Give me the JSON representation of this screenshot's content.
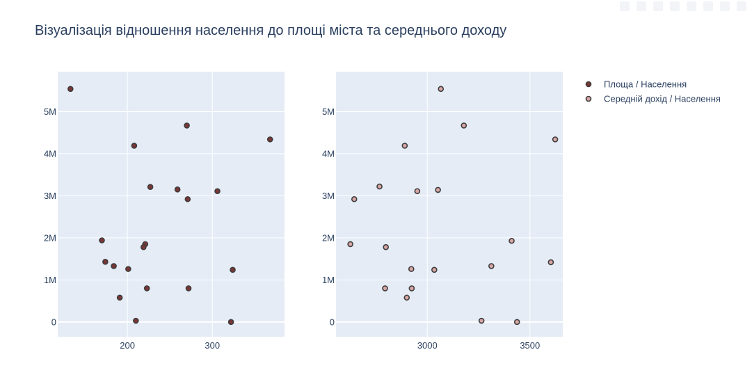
{
  "chart_data": {
    "type": "scatter",
    "title": "Візуалізація відношення населення до площі міста та середнього доходу",
    "subplots": [
      {
        "xlim": [
          118,
          385
        ],
        "ylim": [
          -350000,
          5950000
        ],
        "xticks": [
          200,
          300
        ],
        "yticks": [
          0,
          1000000,
          2000000,
          3000000,
          4000000,
          5000000
        ],
        "ytick_labels": [
          "0",
          "1M",
          "2M",
          "3M",
          "4M",
          "5M"
        ],
        "series": [
          {
            "name": "Площа / Населення",
            "color": "#7b3535",
            "points": [
              {
                "x": 133,
                "y": 5540000
              },
              {
                "x": 270,
                "y": 4670000
              },
              {
                "x": 368,
                "y": 4340000
              },
              {
                "x": 208,
                "y": 4190000
              },
              {
                "x": 227,
                "y": 3210000
              },
              {
                "x": 259,
                "y": 3150000
              },
              {
                "x": 306,
                "y": 3110000
              },
              {
                "x": 271,
                "y": 2920000
              },
              {
                "x": 170,
                "y": 1940000
              },
              {
                "x": 221,
                "y": 1850000
              },
              {
                "x": 219,
                "y": 1780000
              },
              {
                "x": 174,
                "y": 1430000
              },
              {
                "x": 184,
                "y": 1330000
              },
              {
                "x": 201,
                "y": 1260000
              },
              {
                "x": 324,
                "y": 1240000
              },
              {
                "x": 223,
                "y": 800000
              },
              {
                "x": 272,
                "y": 800000
              },
              {
                "x": 191,
                "y": 580000
              },
              {
                "x": 210,
                "y": 30000
              },
              {
                "x": 322,
                "y": 0
              }
            ]
          }
        ]
      },
      {
        "xlim": [
          2555,
          3660
        ],
        "ylim": [
          -350000,
          5950000
        ],
        "xticks": [
          3000,
          3500
        ],
        "yticks": [
          0,
          1000000,
          2000000,
          3000000,
          4000000,
          5000000
        ],
        "ytick_labels": [
          "0",
          "1M",
          "2M",
          "3M",
          "4M",
          "5M"
        ],
        "series": [
          {
            "name": "Середній дохід / Населення",
            "color": "#d9a6a6",
            "points": [
              {
                "x": 3066,
                "y": 5540000
              },
              {
                "x": 3178,
                "y": 4670000
              },
              {
                "x": 3623,
                "y": 4340000
              },
              {
                "x": 2890,
                "y": 4190000
              },
              {
                "x": 2767,
                "y": 3220000
              },
              {
                "x": 2951,
                "y": 3110000
              },
              {
                "x": 3052,
                "y": 3140000
              },
              {
                "x": 2644,
                "y": 2920000
              },
              {
                "x": 3411,
                "y": 1930000
              },
              {
                "x": 2625,
                "y": 1850000
              },
              {
                "x": 2798,
                "y": 1780000
              },
              {
                "x": 3602,
                "y": 1420000
              },
              {
                "x": 3312,
                "y": 1330000
              },
              {
                "x": 2922,
                "y": 1260000
              },
              {
                "x": 3034,
                "y": 1240000
              },
              {
                "x": 2794,
                "y": 800000
              },
              {
                "x": 2924,
                "y": 800000
              },
              {
                "x": 2900,
                "y": 580000
              },
              {
                "x": 3264,
                "y": 30000
              },
              {
                "x": 3437,
                "y": 0
              }
            ]
          }
        ]
      }
    ],
    "legend": {
      "position": "top-right",
      "items": [
        {
          "label": "Площа / Населення",
          "fill": "#7b3535"
        },
        {
          "label": "Середній дохід / Населення",
          "fill": "#d9a6a6"
        }
      ]
    },
    "grid": true,
    "plot_background": "#e5ecf6",
    "marker_outline": "#3d3d3d"
  }
}
